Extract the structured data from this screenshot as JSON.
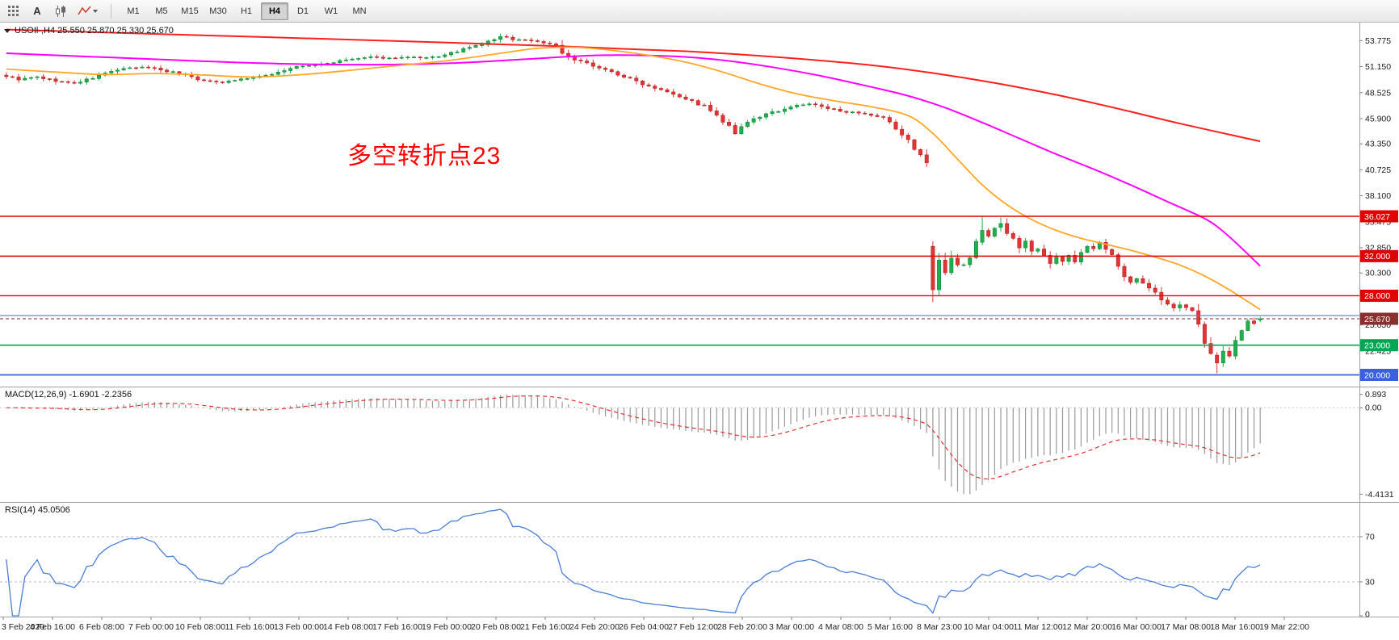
{
  "header": {
    "symbol_ohlc": "USOIl-,H4  25.550 25.870 25.330 25.670"
  },
  "toolbar": {
    "text_tool_label": "A",
    "timeframes": [
      {
        "label": "M1",
        "active": false
      },
      {
        "label": "M5",
        "active": false
      },
      {
        "label": "M15",
        "active": false
      },
      {
        "label": "M30",
        "active": false
      },
      {
        "label": "H1",
        "active": false
      },
      {
        "label": "H4",
        "active": true
      },
      {
        "label": "D1",
        "active": false
      },
      {
        "label": "W1",
        "active": false
      },
      {
        "label": "MN",
        "active": false
      }
    ]
  },
  "chart_data": {
    "type": "candlestick",
    "symbol": "USOIl-",
    "timeframe": "H4",
    "ohlc_display": {
      "open": "25.550",
      "high": "25.870",
      "low": "25.330",
      "close": "25.670"
    },
    "bars_total": 204,
    "y_range": [
      18.9,
      55.6
    ],
    "y_ticks": [
      53.775,
      51.15,
      48.525,
      45.9,
      43.35,
      40.725,
      38.1,
      35.475,
      32.85,
      30.3,
      27.675,
      25.05,
      22.425,
      19.8
    ],
    "x_labels": [
      "3 Feb 2020",
      "4 Feb 16:00",
      "6 Feb 08:00",
      "7 Feb 00:00",
      "10 Feb 08:00",
      "11 Feb 16:00",
      "13 Feb 00:00",
      "14 Feb 08:00",
      "17 Feb 16:00",
      "19 Feb 00:00",
      "20 Feb 08:00",
      "21 Feb 16:00",
      "24 Feb 20:00",
      "26 Feb 04:00",
      "27 Feb 12:00",
      "28 Feb 20:00",
      "3 Mar 00:00",
      "4 Mar 08:00",
      "5 Mar 16:00",
      "8 Mar 23:00",
      "10 Mar 04:00",
      "11 Mar 12:00",
      "12 Mar 20:00",
      "16 Mar 00:00",
      "17 Mar 08:00",
      "18 Mar 16:00",
      "19 Mar 22:00"
    ],
    "close_keypoints": [
      [
        0,
        50.2
      ],
      [
        2,
        49.85
      ],
      [
        5,
        50.1
      ],
      [
        8,
        49.7
      ],
      [
        11,
        49.45
      ],
      [
        14,
        50.0
      ],
      [
        17,
        50.7
      ],
      [
        20,
        51.0
      ],
      [
        23,
        51.1
      ],
      [
        26,
        50.7
      ],
      [
        29,
        50.35
      ],
      [
        32,
        49.7
      ],
      [
        35,
        49.6
      ],
      [
        38,
        49.9
      ],
      [
        41,
        50.1
      ],
      [
        44,
        50.6
      ],
      [
        47,
        51.15
      ],
      [
        50,
        51.3
      ],
      [
        53,
        51.6
      ],
      [
        56,
        51.9
      ],
      [
        59,
        52.1
      ],
      [
        62,
        52.0
      ],
      [
        65,
        52.1
      ],
      [
        68,
        52.0
      ],
      [
        71,
        52.3
      ],
      [
        74,
        52.9
      ],
      [
        77,
        53.4
      ],
      [
        80,
        54.2
      ],
      [
        82,
        53.9
      ],
      [
        85,
        53.8
      ],
      [
        88,
        53.45
      ],
      [
        89,
        53.5
      ],
      [
        90,
        52.4
      ],
      [
        92,
        51.8
      ],
      [
        95,
        51.3
      ],
      [
        98,
        50.6
      ],
      [
        101,
        49.9
      ],
      [
        104,
        49.2
      ],
      [
        107,
        48.7
      ],
      [
        110,
        47.9
      ],
      [
        113,
        47.1
      ],
      [
        116,
        45.6
      ],
      [
        118,
        44.35
      ],
      [
        119,
        44.9
      ],
      [
        121,
        45.9
      ],
      [
        124,
        46.5
      ],
      [
        127,
        47.1
      ],
      [
        130,
        47.4
      ],
      [
        133,
        46.9
      ],
      [
        136,
        46.6
      ],
      [
        139,
        46.3
      ],
      [
        142,
        45.9
      ],
      [
        144,
        44.9
      ],
      [
        146,
        43.6
      ],
      [
        148,
        42.3
      ],
      [
        149,
        41.4
      ],
      [
        150,
        28.6
      ],
      [
        151,
        31.6
      ],
      [
        152,
        30.6
      ],
      [
        153,
        31.8
      ],
      [
        154,
        31.2
      ],
      [
        155,
        31.0
      ],
      [
        156,
        31.9
      ],
      [
        157,
        33.4
      ],
      [
        158,
        34.6
      ],
      [
        159,
        34.2
      ],
      [
        160,
        34.9
      ],
      [
        161,
        35.3
      ],
      [
        162,
        34.4
      ],
      [
        163,
        33.6
      ],
      [
        164,
        33.0
      ],
      [
        165,
        33.5
      ],
      [
        166,
        32.4
      ],
      [
        167,
        33.0
      ],
      [
        168,
        32.3
      ],
      [
        169,
        31.4
      ],
      [
        170,
        31.9
      ],
      [
        171,
        31.2
      ],
      [
        172,
        32.1
      ],
      [
        173,
        31.6
      ],
      [
        174,
        32.4
      ],
      [
        175,
        33.1
      ],
      [
        176,
        32.6
      ],
      [
        177,
        33.2
      ],
      [
        178,
        32.7
      ],
      [
        179,
        31.9
      ],
      [
        180,
        30.9
      ],
      [
        181,
        30.1
      ],
      [
        182,
        29.5
      ],
      [
        183,
        29.9
      ],
      [
        184,
        29.2
      ],
      [
        185,
        28.7
      ],
      [
        186,
        28.3
      ],
      [
        187,
        27.6
      ],
      [
        188,
        27.1
      ],
      [
        189,
        26.6
      ],
      [
        190,
        27.2
      ],
      [
        191,
        26.9
      ],
      [
        192,
        26.2
      ],
      [
        193,
        24.9
      ],
      [
        194,
        23.3
      ],
      [
        195,
        22.0
      ],
      [
        196,
        21.2
      ],
      [
        197,
        22.4
      ],
      [
        198,
        22.1
      ],
      [
        199,
        23.4
      ],
      [
        200,
        24.6
      ],
      [
        201,
        25.4
      ],
      [
        202,
        25.2
      ],
      [
        203,
        25.67
      ]
    ],
    "bar_overrides": {
      "80": [
        53.9,
        54.5,
        53.55,
        54.2
      ],
      "150": [
        33.0,
        33.5,
        27.34,
        28.6
      ],
      "151": [
        28.6,
        32.3,
        28.0,
        31.6
      ],
      "158": [
        33.4,
        36.0,
        33.1,
        34.6
      ],
      "161": [
        34.9,
        35.9,
        34.5,
        35.3
      ],
      "196": [
        22.0,
        22.3,
        20.15,
        21.2
      ],
      "197": [
        21.2,
        22.9,
        20.8,
        22.4
      ],
      "203": [
        25.55,
        25.87,
        25.33,
        25.67
      ]
    },
    "horizontal_lines": [
      {
        "value": 36.027,
        "color": "#e00000",
        "boxed": true,
        "width": 1.4
      },
      {
        "value": 32.0,
        "color": "#e00000",
        "boxed": true,
        "width": 1.4
      },
      {
        "value": 28.0,
        "color": "#e00000",
        "boxed": true,
        "width": 1.4
      },
      {
        "value": 26.0,
        "color": "#5b7fc4",
        "boxed": false,
        "width": 1.2
      },
      {
        "value": 23.0,
        "color": "#00a651",
        "boxed": true,
        "width": 1.6
      },
      {
        "value": 20.0,
        "color": "#3a5fe0",
        "boxed": true,
        "width": 1.8
      }
    ],
    "current_price": 25.67,
    "colors": {
      "up": "#1faf4b",
      "up_dark": "#0e7d33",
      "down": "#e23434",
      "down_dark": "#a81f1f",
      "macd_hist": "#9a9a9a",
      "macd_signal": "#e03030",
      "rsi_line": "#4a7fd4",
      "current_box": "#8b2e2e"
    },
    "overlays": [
      {
        "name": "long-term-ma",
        "color": "#ff1f1f",
        "width": 2,
        "points": [
          [
            0,
            54.9
          ],
          [
            30,
            54.35
          ],
          [
            60,
            53.8
          ],
          [
            90,
            53.2
          ],
          [
            110,
            52.7
          ],
          [
            125,
            52.1
          ],
          [
            140,
            51.3
          ],
          [
            150,
            50.5
          ],
          [
            160,
            49.5
          ],
          [
            170,
            48.3
          ],
          [
            180,
            46.9
          ],
          [
            190,
            45.4
          ],
          [
            203,
            43.6
          ]
        ]
      },
      {
        "name": "medium-ma",
        "color": "#ff00ff",
        "width": 2,
        "points": [
          [
            0,
            52.5
          ],
          [
            12,
            52.2
          ],
          [
            24,
            51.9
          ],
          [
            36,
            51.6
          ],
          [
            48,
            51.4
          ],
          [
            60,
            51.35
          ],
          [
            72,
            51.5
          ],
          [
            84,
            51.9
          ],
          [
            96,
            52.3
          ],
          [
            108,
            52.2
          ],
          [
            116,
            51.8
          ],
          [
            124,
            51.1
          ],
          [
            132,
            50.2
          ],
          [
            140,
            49.1
          ],
          [
            146,
            48.2
          ],
          [
            152,
            47.0
          ],
          [
            158,
            45.5
          ],
          [
            164,
            43.9
          ],
          [
            170,
            42.3
          ],
          [
            176,
            40.8
          ],
          [
            182,
            39.2
          ],
          [
            188,
            37.5
          ],
          [
            194,
            35.8
          ],
          [
            197,
            34.5
          ],
          [
            200,
            32.8
          ],
          [
            203,
            31.0
          ]
        ]
      },
      {
        "name": "fast-ma",
        "color": "#ffa726",
        "width": 1.8,
        "points": [
          [
            0,
            50.9
          ],
          [
            8,
            50.6
          ],
          [
            16,
            50.35
          ],
          [
            24,
            50.45
          ],
          [
            32,
            50.3
          ],
          [
            40,
            50.1
          ],
          [
            48,
            50.35
          ],
          [
            56,
            50.8
          ],
          [
            64,
            51.3
          ],
          [
            72,
            51.8
          ],
          [
            80,
            52.5
          ],
          [
            86,
            53.0
          ],
          [
            92,
            53.1
          ],
          [
            98,
            52.8
          ],
          [
            104,
            52.3
          ],
          [
            110,
            51.6
          ],
          [
            116,
            50.6
          ],
          [
            122,
            49.4
          ],
          [
            128,
            48.4
          ],
          [
            134,
            47.7
          ],
          [
            140,
            47.1
          ],
          [
            146,
            46.2
          ],
          [
            150,
            44.4
          ],
          [
            154,
            41.8
          ],
          [
            158,
            39.2
          ],
          [
            162,
            37.2
          ],
          [
            166,
            35.7
          ],
          [
            170,
            34.6
          ],
          [
            174,
            33.8
          ],
          [
            178,
            33.2
          ],
          [
            182,
            32.6
          ],
          [
            186,
            31.9
          ],
          [
            190,
            31.1
          ],
          [
            194,
            30.0
          ],
          [
            198,
            28.6
          ],
          [
            201,
            27.4
          ],
          [
            203,
            26.6
          ]
        ]
      }
    ],
    "indicators": {
      "macd": {
        "label": "MACD(12,26,9) -1.6901 -2.2356",
        "params": [
          12,
          26,
          9
        ],
        "values": [
          -1.6901,
          -2.2356
        ],
        "scale_labels": [
          "0.893",
          "0.00",
          "-4.4131"
        ]
      },
      "rsi": {
        "label": "RSI(14) 45.0506",
        "period": 14,
        "value": 45.0506,
        "levels": [
          70,
          30
        ],
        "scale_labels": [
          "70",
          "30",
          "0"
        ]
      }
    },
    "annotation": {
      "text": "多空转折点23",
      "color": "#ff0000"
    }
  }
}
